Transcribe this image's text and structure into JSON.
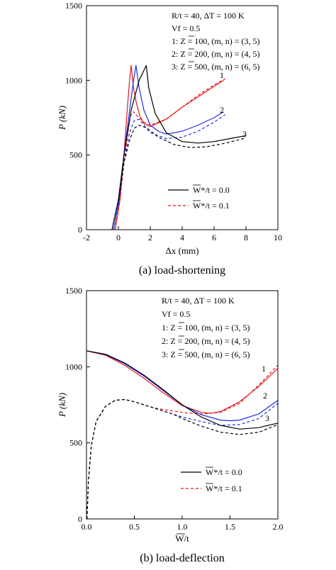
{
  "chart_data": [
    {
      "type": "line",
      "caption": "(a) load-shortening",
      "xlabel": "Δx (mm)",
      "ylabel": "P (kN)",
      "xlim": [
        -2,
        10
      ],
      "ylim": [
        0,
        1500
      ],
      "xticks": [
        -2,
        0,
        2,
        4,
        6,
        8,
        10
      ],
      "yticks": [
        0,
        500,
        1000,
        1500
      ],
      "annotations": [
        "R/t = 40, ΔT = 100 K",
        "Vf = 0.5",
        "1: Z = 100, (m, n) = (3, 5)",
        "2: Z = 200, (m, n) = (4, 5)",
        "3: Z = 500, (m, n) = (6, 5)"
      ],
      "legend": {
        "position": "lower-right",
        "entries": [
          "W*/t = 0.0",
          "W*/t = 0.1"
        ]
      },
      "curve_labels": [
        "1",
        "2",
        "3"
      ],
      "colors": {
        "curve1": "#e8141a",
        "curve2": "#1e2ee6",
        "curve3": "#000000"
      },
      "series": [
        {
          "curve": "1",
          "imperfection": "0.0",
          "style": "solid",
          "color": "#e8141a",
          "points": [
            [
              -0.2,
              0
            ],
            [
              0.1,
              200
            ],
            [
              0.35,
              500
            ],
            [
              0.55,
              800
            ],
            [
              0.7,
              1000
            ],
            [
              0.8,
              1100
            ],
            [
              0.95,
              950
            ],
            [
              1.1,
              860
            ],
            [
              1.35,
              760
            ],
            [
              1.6,
              710
            ],
            [
              2.0,
              690
            ],
            [
              3.0,
              740
            ],
            [
              4.0,
              820
            ],
            [
              5.0,
              890
            ],
            [
              6.0,
              960
            ],
            [
              6.6,
              1000
            ]
          ]
        },
        {
          "curve": "1",
          "imperfection": "0.1",
          "style": "dashed",
          "color": "#e8141a",
          "points": [
            [
              -0.2,
              0
            ],
            [
              0.1,
              200
            ],
            [
              0.35,
              450
            ],
            [
              0.55,
              620
            ],
            [
              0.75,
              760
            ],
            [
              0.95,
              790
            ],
            [
              1.2,
              760
            ],
            [
              1.6,
              720
            ],
            [
              2.0,
              700
            ],
            [
              3.0,
              740
            ],
            [
              4.0,
              820
            ],
            [
              5.0,
              900
            ],
            [
              6.0,
              970
            ],
            [
              6.7,
              1010
            ]
          ]
        },
        {
          "curve": "2",
          "imperfection": "0.0",
          "style": "solid",
          "color": "#1e2ee6",
          "points": [
            [
              -0.3,
              0
            ],
            [
              0.05,
              200
            ],
            [
              0.35,
              500
            ],
            [
              0.7,
              800
            ],
            [
              0.95,
              1000
            ],
            [
              1.1,
              1100
            ],
            [
              1.3,
              950
            ],
            [
              1.6,
              800
            ],
            [
              2.0,
              700
            ],
            [
              2.5,
              660
            ],
            [
              3.0,
              640
            ],
            [
              4.0,
              660
            ],
            [
              5.0,
              700
            ],
            [
              6.0,
              750
            ],
            [
              6.6,
              790
            ]
          ]
        },
        {
          "curve": "2",
          "imperfection": "0.1",
          "style": "dashed",
          "color": "#1e2ee6",
          "points": [
            [
              -0.3,
              0
            ],
            [
              0.05,
              200
            ],
            [
              0.35,
              450
            ],
            [
              0.7,
              650
            ],
            [
              1.0,
              730
            ],
            [
              1.3,
              740
            ],
            [
              1.6,
              700
            ],
            [
              2.0,
              650
            ],
            [
              3.0,
              610
            ],
            [
              4.0,
              620
            ],
            [
              5.0,
              660
            ],
            [
              6.0,
              720
            ],
            [
              6.7,
              770
            ]
          ]
        },
        {
          "curve": "3",
          "imperfection": "0.0",
          "style": "solid",
          "color": "#000000",
          "points": [
            [
              -0.4,
              0
            ],
            [
              0.0,
              200
            ],
            [
              0.35,
              500
            ],
            [
              0.8,
              800
            ],
            [
              1.3,
              1000
            ],
            [
              1.75,
              1100
            ],
            [
              1.9,
              950
            ],
            [
              2.3,
              780
            ],
            [
              3.0,
              650
            ],
            [
              4.0,
              590
            ],
            [
              5.0,
              580
            ],
            [
              6.0,
              590
            ],
            [
              7.0,
              610
            ],
            [
              8.0,
              630
            ]
          ]
        },
        {
          "curve": "3",
          "imperfection": "0.1",
          "style": "dashed",
          "color": "#000000",
          "points": [
            [
              -0.4,
              0
            ],
            [
              0.0,
              200
            ],
            [
              0.35,
              450
            ],
            [
              0.7,
              600
            ],
            [
              1.0,
              680
            ],
            [
              1.3,
              700
            ],
            [
              1.8,
              680
            ],
            [
              2.5,
              620
            ],
            [
              3.5,
              570
            ],
            [
              4.5,
              550
            ],
            [
              5.5,
              555
            ],
            [
              6.5,
              575
            ],
            [
              7.5,
              600
            ],
            [
              8.0,
              615
            ]
          ]
        }
      ]
    },
    {
      "type": "line",
      "caption": "(b) load-deflection",
      "xlabel": "W/t",
      "ylabel": "P (kN)",
      "xlim": [
        0,
        2
      ],
      "ylim": [
        0,
        1500
      ],
      "xticks": [
        0.0,
        0.5,
        1.0,
        1.5,
        2.0
      ],
      "yticks": [
        0,
        500,
        1000,
        1500
      ],
      "annotations": [
        "R/t = 40, ΔT = 100 K",
        "Vf = 0.5",
        "1: Z = 100, (m, n) = (3, 5)",
        "2: Z = 200, (m, n) = (4, 5)",
        "3: Z = 500, (m, n) = (6, 5)"
      ],
      "legend": {
        "position": "lower-right",
        "entries": [
          "W*/t = 0.0",
          "W*/t = 0.1"
        ]
      },
      "curve_labels": [
        "1",
        "2",
        "3"
      ],
      "colors": {
        "curve1": "#e8141a",
        "curve2": "#1e2ee6",
        "curve3": "#000000"
      },
      "series": [
        {
          "curve": "1",
          "imperfection": "0.0",
          "style": "solid",
          "color": "#e8141a",
          "points": [
            [
              0.0,
              1105
            ],
            [
              0.2,
              1075
            ],
            [
              0.4,
              1010
            ],
            [
              0.6,
              925
            ],
            [
              0.8,
              830
            ],
            [
              1.0,
              745
            ],
            [
              1.2,
              700
            ],
            [
              1.3,
              695
            ],
            [
              1.4,
              705
            ],
            [
              1.6,
              770
            ],
            [
              1.8,
              870
            ],
            [
              2.0,
              990
            ]
          ]
        },
        {
          "curve": "1",
          "imperfection": "0.1",
          "style": "dashed",
          "color": "#e8141a",
          "points": [
            [
              0.005,
              0
            ],
            [
              0.02,
              250
            ],
            [
              0.05,
              480
            ],
            [
              0.1,
              640
            ],
            [
              0.2,
              740
            ],
            [
              0.3,
              780
            ],
            [
              0.4,
              785
            ],
            [
              0.5,
              770
            ],
            [
              0.7,
              730
            ],
            [
              0.9,
              710
            ],
            [
              1.0,
              700
            ],
            [
              1.2,
              690
            ],
            [
              1.4,
              700
            ],
            [
              1.6,
              760
            ],
            [
              1.8,
              880
            ],
            [
              2.0,
              1010
            ]
          ]
        },
        {
          "curve": "2",
          "imperfection": "0.0",
          "style": "solid",
          "color": "#1e2ee6",
          "points": [
            [
              0.0,
              1105
            ],
            [
              0.2,
              1080
            ],
            [
              0.4,
              1020
            ],
            [
              0.6,
              940
            ],
            [
              0.8,
              845
            ],
            [
              1.0,
              750
            ],
            [
              1.2,
              685
            ],
            [
              1.4,
              650
            ],
            [
              1.5,
              645
            ],
            [
              1.6,
              650
            ],
            [
              1.8,
              690
            ],
            [
              2.0,
              780
            ]
          ]
        },
        {
          "curve": "2",
          "imperfection": "0.1",
          "style": "dashed",
          "color": "#1e2ee6",
          "points": [
            [
              0.005,
              0
            ],
            [
              0.02,
              250
            ],
            [
              0.05,
              480
            ],
            [
              0.1,
              640
            ],
            [
              0.2,
              740
            ],
            [
              0.3,
              780
            ],
            [
              0.4,
              785
            ],
            [
              0.5,
              770
            ],
            [
              0.7,
              730
            ],
            [
              0.9,
              690
            ],
            [
              1.0,
              670
            ],
            [
              1.2,
              640
            ],
            [
              1.4,
              615
            ],
            [
              1.6,
              620
            ],
            [
              1.8,
              660
            ],
            [
              2.0,
              760
            ]
          ]
        },
        {
          "curve": "3",
          "imperfection": "0.0",
          "style": "solid",
          "color": "#000000",
          "points": [
            [
              0.0,
              1105
            ],
            [
              0.2,
              1082
            ],
            [
              0.4,
              1025
            ],
            [
              0.6,
              945
            ],
            [
              0.8,
              850
            ],
            [
              1.0,
              750
            ],
            [
              1.2,
              670
            ],
            [
              1.4,
              615
            ],
            [
              1.6,
              590
            ],
            [
              1.8,
              600
            ],
            [
              2.0,
              630
            ]
          ]
        },
        {
          "curve": "3",
          "imperfection": "0.1",
          "style": "dashed",
          "color": "#000000",
          "points": [
            [
              0.005,
              0
            ],
            [
              0.02,
              250
            ],
            [
              0.05,
              480
            ],
            [
              0.1,
              640
            ],
            [
              0.2,
              740
            ],
            [
              0.3,
              780
            ],
            [
              0.4,
              785
            ],
            [
              0.5,
              770
            ],
            [
              0.7,
              730
            ],
            [
              0.9,
              690
            ],
            [
              1.0,
              660
            ],
            [
              1.2,
              610
            ],
            [
              1.4,
              570
            ],
            [
              1.6,
              555
            ],
            [
              1.8,
              570
            ],
            [
              2.0,
              620
            ]
          ]
        }
      ]
    }
  ]
}
